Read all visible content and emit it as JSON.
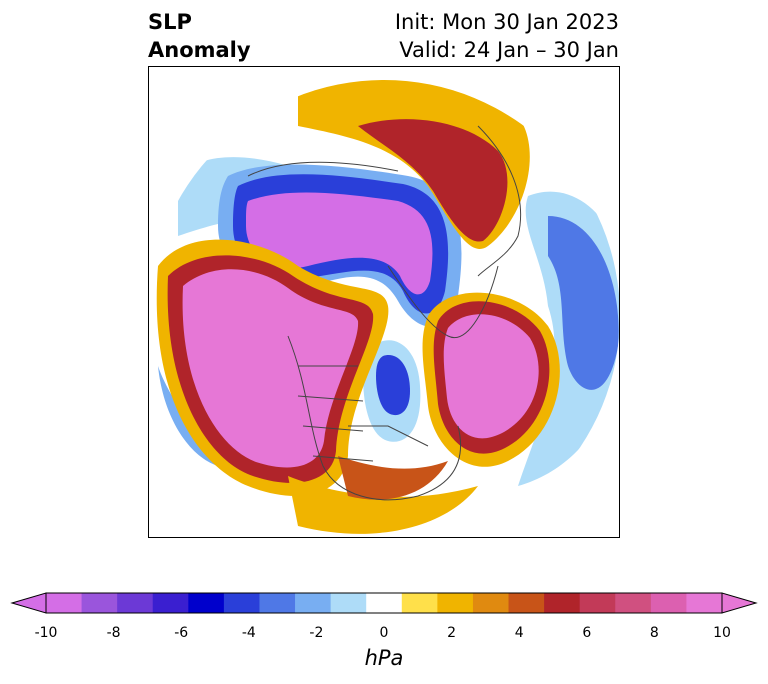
{
  "title": {
    "left_line1": "SLP",
    "left_line2": "Anomaly",
    "right_line1": "Init: Mon 30 Jan 2023",
    "right_line2": "Valid: 24 Jan – 30 Jan"
  },
  "colorbar": {
    "unit": "hPa",
    "ticks": [
      "-10",
      "-8",
      "-6",
      "-4",
      "-2",
      "0",
      "2",
      "4",
      "6",
      "8",
      "10"
    ],
    "colors": [
      "#d46ee6",
      "#9a55dc",
      "#6c39d6",
      "#3a1fd0",
      "#0000cc",
      "#2a3fd9",
      "#4f78e6",
      "#78aef2",
      "#aedcf8",
      "#ffffff",
      "#ffe04a",
      "#f0b400",
      "#e08a10",
      "#c85418",
      "#b0242a",
      "#c23a58",
      "#d05080",
      "#dc60b0",
      "#e677d6"
    ]
  },
  "map": {
    "colors": {
      "strong_negative": "#d46ee6",
      "negative_blue": "#2a3fd9",
      "light_blue": "#aedcf8",
      "strong_positive": "#e677d6",
      "positive_red": "#b0242a",
      "positive_yellow": "#f0b400",
      "land_outline": "#444444"
    }
  }
}
